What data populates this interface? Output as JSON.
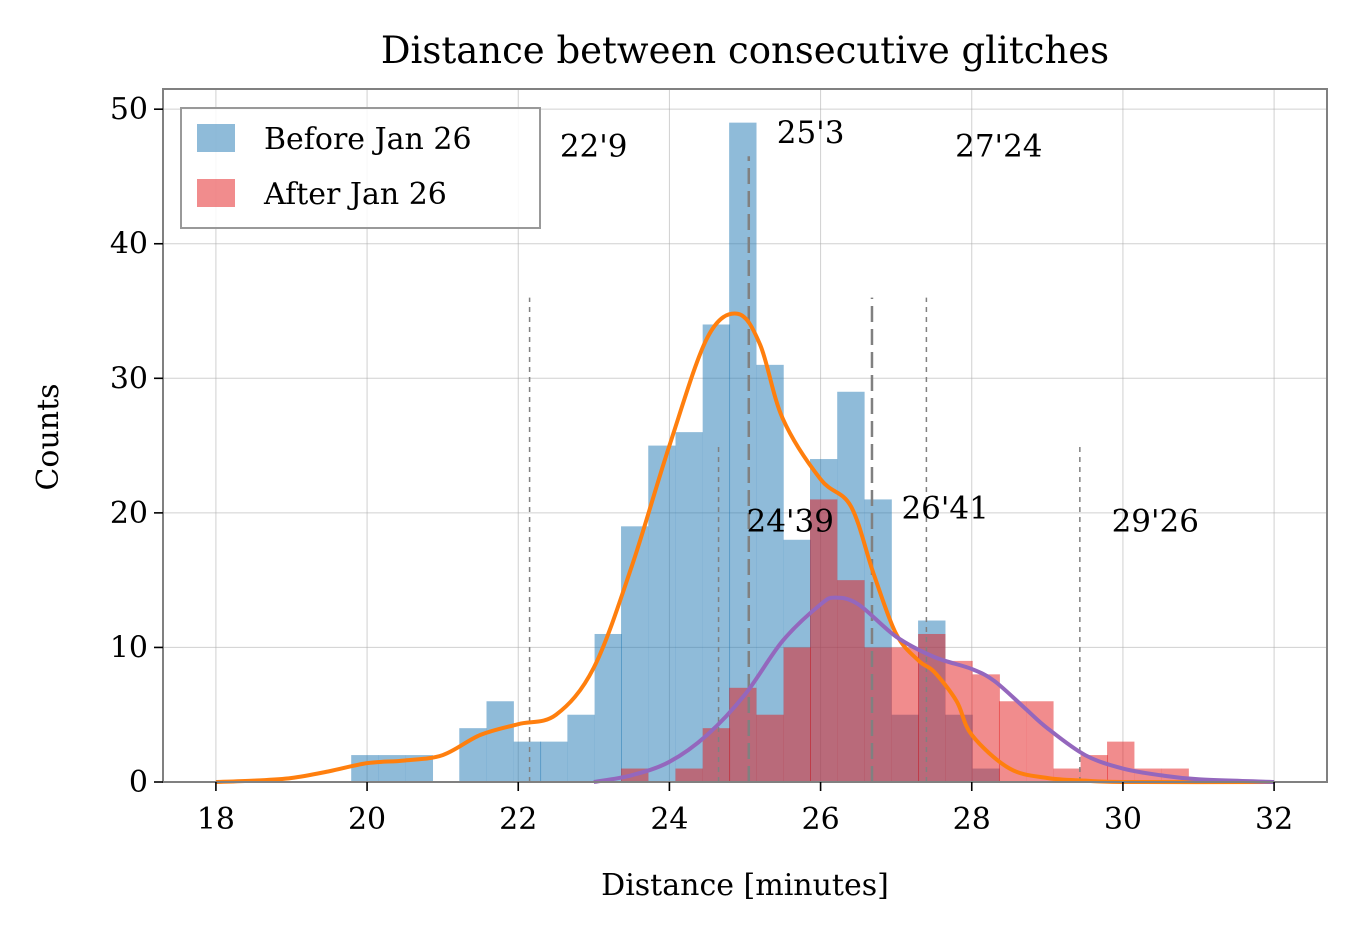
{
  "chart_data": {
    "type": "histogram",
    "title": "Distance between consecutive glitches",
    "xlabel": "Distance [minutes]",
    "ylabel": "Counts",
    "xlim": [
      17.3,
      32.7
    ],
    "ylim": [
      0,
      51.5
    ],
    "xticks": [
      18,
      20,
      22,
      24,
      26,
      28,
      30,
      32
    ],
    "yticks": [
      0,
      10,
      20,
      30,
      40,
      50
    ],
    "grid": true,
    "legend_position": "top-left",
    "bin_width": 0.357,
    "series": [
      {
        "name": "Before Jan 26",
        "color": "#1f77b4",
        "opacity": 0.5,
        "bins": [
          {
            "x0": 19.79,
            "count": 2
          },
          {
            "x0": 20.15,
            "count": 2
          },
          {
            "x0": 20.51,
            "count": 2
          },
          {
            "x0": 21.22,
            "count": 4
          },
          {
            "x0": 21.58,
            "count": 6
          },
          {
            "x0": 21.94,
            "count": 3
          },
          {
            "x0": 22.29,
            "count": 3
          },
          {
            "x0": 22.65,
            "count": 5
          },
          {
            "x0": 23.01,
            "count": 11
          },
          {
            "x0": 23.36,
            "count": 19
          },
          {
            "x0": 23.72,
            "count": 25
          },
          {
            "x0": 24.08,
            "count": 26
          },
          {
            "x0": 24.44,
            "count": 34
          },
          {
            "x0": 24.79,
            "count": 49
          },
          {
            "x0": 25.15,
            "count": 31
          },
          {
            "x0": 25.51,
            "count": 18
          },
          {
            "x0": 25.86,
            "count": 24
          },
          {
            "x0": 26.22,
            "count": 29
          },
          {
            "x0": 26.58,
            "count": 21
          },
          {
            "x0": 26.94,
            "count": 5
          },
          {
            "x0": 27.29,
            "count": 12
          },
          {
            "x0": 27.65,
            "count": 5
          },
          {
            "x0": 28.01,
            "count": 1
          }
        ]
      },
      {
        "name": "After Jan 26",
        "color": "#e31a1c",
        "opacity": 0.5,
        "bins": [
          {
            "x0": 23.36,
            "count": 1
          },
          {
            "x0": 24.08,
            "count": 1
          },
          {
            "x0": 24.44,
            "count": 4
          },
          {
            "x0": 24.79,
            "count": 7
          },
          {
            "x0": 25.15,
            "count": 5
          },
          {
            "x0": 25.51,
            "count": 10
          },
          {
            "x0": 25.86,
            "count": 21
          },
          {
            "x0": 26.22,
            "count": 15
          },
          {
            "x0": 26.58,
            "count": 10
          },
          {
            "x0": 26.94,
            "count": 10
          },
          {
            "x0": 27.29,
            "count": 11
          },
          {
            "x0": 27.65,
            "count": 9
          },
          {
            "x0": 28.01,
            "count": 8
          },
          {
            "x0": 28.36,
            "count": 6
          },
          {
            "x0": 28.72,
            "count": 6
          },
          {
            "x0": 29.08,
            "count": 1
          },
          {
            "x0": 29.44,
            "count": 2
          },
          {
            "x0": 29.79,
            "count": 3
          },
          {
            "x0": 30.15,
            "count": 1
          },
          {
            "x0": 30.51,
            "count": 1
          }
        ]
      }
    ],
    "kde_curves": [
      {
        "color": "#ff7f0e",
        "points": [
          [
            18,
            0
          ],
          [
            18.5,
            0.1
          ],
          [
            19,
            0.3
          ],
          [
            19.5,
            0.8
          ],
          [
            20,
            1.4
          ],
          [
            20.5,
            1.6
          ],
          [
            21,
            2
          ],
          [
            21.5,
            3.5
          ],
          [
            22,
            4.3
          ],
          [
            22.5,
            5
          ],
          [
            23,
            8.5
          ],
          [
            23.5,
            16
          ],
          [
            24,
            25
          ],
          [
            24.5,
            33
          ],
          [
            24.9,
            34.8
          ],
          [
            25.2,
            32.5
          ],
          [
            25.5,
            27
          ],
          [
            26,
            22.5
          ],
          [
            26.4,
            20.5
          ],
          [
            26.7,
            15.5
          ],
          [
            27,
            11
          ],
          [
            27.3,
            9
          ],
          [
            27.5,
            8.2
          ],
          [
            27.8,
            6
          ],
          [
            28,
            3.5
          ],
          [
            28.5,
            1
          ],
          [
            29,
            0.3
          ],
          [
            29.5,
            0.1
          ],
          [
            30,
            0
          ],
          [
            32,
            0
          ]
        ]
      },
      {
        "color": "#9467bd",
        "points": [
          [
            23,
            0
          ],
          [
            23.5,
            0.5
          ],
          [
            24,
            1.5
          ],
          [
            24.5,
            3.5
          ],
          [
            25,
            6.5
          ],
          [
            25.5,
            10.5
          ],
          [
            26,
            13.2
          ],
          [
            26.2,
            13.7
          ],
          [
            26.5,
            13.2
          ],
          [
            27,
            10.8
          ],
          [
            27.5,
            9.3
          ],
          [
            28,
            8.4
          ],
          [
            28.3,
            7.5
          ],
          [
            28.7,
            5.5
          ],
          [
            29,
            4
          ],
          [
            29.5,
            2
          ],
          [
            30,
            1
          ],
          [
            30.5,
            0.5
          ],
          [
            31,
            0.2
          ],
          [
            32,
            0
          ]
        ]
      }
    ],
    "reference_lines": [
      {
        "x": 22.15,
        "style": "dotted",
        "ymax": 36
      },
      {
        "x": 24.65,
        "style": "dotted",
        "ymax": 25
      },
      {
        "x": 25.05,
        "style": "dashed",
        "ymax": 46.5
      },
      {
        "x": 26.68,
        "style": "dashed",
        "ymax": 36
      },
      {
        "x": 27.4,
        "style": "dotted",
        "ymax": 36
      },
      {
        "x": 29.43,
        "style": "dotted",
        "ymax": 25
      }
    ],
    "annotations": [
      {
        "text": "22'9",
        "x": 22.55,
        "y": 46.5
      },
      {
        "text": "25'3",
        "x": 25.42,
        "y": 47.5
      },
      {
        "text": "27'24",
        "x": 27.78,
        "y": 46.5
      },
      {
        "text": "24'39",
        "x": 25.02,
        "y": 18.6
      },
      {
        "text": "26'41",
        "x": 27.07,
        "y": 19.6
      },
      {
        "text": "29'26",
        "x": 29.85,
        "y": 18.6
      }
    ]
  }
}
